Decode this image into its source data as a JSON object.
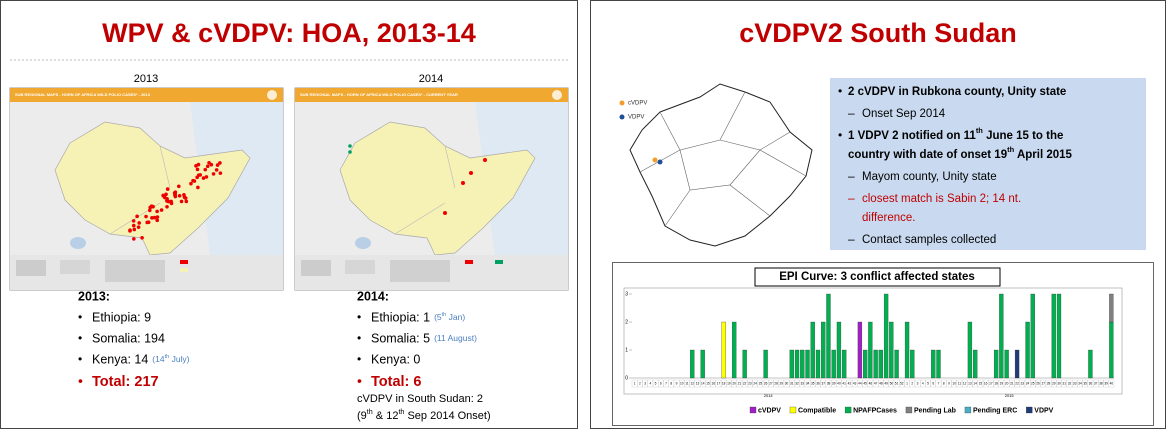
{
  "left_slide": {
    "title": "WPV & cVDPV: HOA, 2013-14",
    "maps": [
      {
        "year": "2013",
        "header": "SUB REGIONAL MAPS - HORN OF AFRICA WILD POLIO CASES* - 2013"
      },
      {
        "year": "2014",
        "header": "SUB REGIONAL MAPS - HORN OF AFRICA WILD POLIO CASES* - CURRENT YEAR"
      }
    ],
    "lists": [
      {
        "heading": "2013:",
        "items": [
          {
            "text": "Ethiopia: 9"
          },
          {
            "text": "Somalia: 194"
          },
          {
            "text": "Kenya: 14",
            "note": [
              "(14",
              "th",
              " July)"
            ]
          }
        ],
        "total": "Total: 217"
      },
      {
        "heading": "2014:",
        "items": [
          {
            "text": "Ethiopia: 1",
            "note": [
              "(5",
              "th",
              " Jan)"
            ]
          },
          {
            "text": "Somalia: 5",
            "note": [
              "(11 August)"
            ]
          },
          {
            "text": "Kenya: 0"
          }
        ],
        "total": "Total: 6",
        "footnote": [
          [
            "cVDPV in South Sudan: 2"
          ],
          [
            "(9",
            "th",
            " & 12",
            "th",
            " Sep 2014 Onset)"
          ]
        ]
      }
    ]
  },
  "right_slide": {
    "title": "cVDPV2 South Sudan",
    "map_legend": [
      "cVDPV",
      "VDPV"
    ],
    "bullets": [
      {
        "level": 1,
        "lines": [
          [
            "2 cVDPV in Rubkona county, Unity state"
          ]
        ]
      },
      {
        "level": 2,
        "lines": [
          [
            "Onset Sep 2014"
          ]
        ]
      },
      {
        "level": 1,
        "lines": [
          [
            "1 VDPV 2 notified on 11",
            "th",
            " June 15 to the"
          ],
          [
            "country with date of onset 19",
            "th",
            " April 2015"
          ]
        ]
      },
      {
        "level": 2,
        "lines": [
          [
            "Mayom county, Unity state"
          ]
        ]
      },
      {
        "level": 2,
        "color": "#c00000",
        "lines": [
          [
            "closest match is Sabin 2; 14 nt."
          ],
          [
            "difference."
          ]
        ]
      },
      {
        "level": 2,
        "lines": [
          [
            "Contact samples collected"
          ]
        ]
      }
    ],
    "epi_curve": {
      "type": "bar",
      "stacked": true,
      "title": "EPI Curve: 3 conflict affected states",
      "years": [
        "2014",
        "2015"
      ],
      "categories": [
        "1",
        "2",
        "3",
        "4",
        "5",
        "6",
        "7",
        "8",
        "9",
        "10",
        "11",
        "12",
        "13",
        "14",
        "15",
        "16",
        "17",
        "18",
        "19",
        "20",
        "21",
        "22",
        "23",
        "24",
        "25",
        "26",
        "27",
        "28",
        "29",
        "30",
        "31",
        "32",
        "33",
        "34",
        "35",
        "36",
        "37",
        "38",
        "39",
        "40",
        "41",
        "42",
        "43",
        "44",
        "45",
        "46",
        "47",
        "48",
        "49",
        "50",
        "51",
        "52",
        "1",
        "2",
        "3",
        "4",
        "5",
        "6",
        "7",
        "8",
        "9",
        "10",
        "11",
        "12",
        "13",
        "14",
        "15",
        "16",
        "17",
        "18",
        "19",
        "20",
        "21",
        "22",
        "23",
        "24",
        "25",
        "26",
        "27",
        "28",
        "29",
        "30",
        "31",
        "32",
        "33",
        "34",
        "35",
        "36",
        "37",
        "38",
        "39",
        "40"
      ],
      "ylim": [
        0,
        3
      ],
      "yticks": [
        0,
        1,
        2,
        3
      ],
      "series": [
        {
          "name": "cVDPV",
          "color": "#a020c8",
          "values": [
            0,
            0,
            0,
            0,
            0,
            0,
            0,
            0,
            0,
            0,
            0,
            0,
            0,
            0,
            0,
            0,
            0,
            0,
            0,
            0,
            0,
            0,
            0,
            0,
            0,
            0,
            0,
            0,
            0,
            0,
            0,
            0,
            0,
            0,
            0,
            0,
            0,
            0,
            0,
            0,
            0,
            0,
            0,
            2,
            0,
            0,
            0,
            0,
            0,
            0,
            0,
            0,
            0,
            0,
            0,
            0,
            0,
            0,
            0,
            0,
            0,
            0,
            0,
            0,
            0,
            0,
            0,
            0,
            0,
            0,
            0,
            0,
            0,
            0,
            0,
            0,
            0,
            0,
            0,
            0,
            0,
            0,
            0,
            0,
            0,
            0,
            0,
            0,
            0,
            0,
            0,
            0
          ]
        },
        {
          "name": "Compatible",
          "color": "#ffff00",
          "values": [
            0,
            0,
            0,
            0,
            0,
            0,
            0,
            0,
            0,
            0,
            0,
            0,
            0,
            0,
            0,
            0,
            0,
            2,
            0,
            0,
            0,
            0,
            0,
            0,
            0,
            0,
            0,
            0,
            0,
            0,
            0,
            0,
            0,
            0,
            0,
            0,
            0,
            0,
            0,
            0,
            0,
            0,
            0,
            0,
            0,
            0,
            0,
            0,
            0,
            0,
            0,
            0,
            0,
            0,
            0,
            0,
            0,
            0,
            0,
            0,
            0,
            0,
            0,
            0,
            0,
            0,
            0,
            0,
            0,
            0,
            0,
            0,
            0,
            0,
            0,
            0,
            0,
            0,
            0,
            0,
            0,
            0,
            0,
            0,
            0,
            0,
            0,
            0,
            0,
            0,
            0,
            0
          ]
        },
        {
          "name": "NPAFPCases",
          "color": "#00b050",
          "values": [
            0,
            0,
            0,
            0,
            0,
            0,
            0,
            0,
            0,
            0,
            0,
            1,
            0,
            1,
            0,
            0,
            0,
            0,
            0,
            2,
            0,
            1,
            0,
            0,
            0,
            1,
            0,
            0,
            0,
            0,
            1,
            1,
            1,
            1,
            2,
            1,
            2,
            3,
            1,
            2,
            1,
            0,
            0,
            0,
            1,
            2,
            1,
            1,
            3,
            2,
            1,
            0,
            2,
            1,
            0,
            0,
            0,
            1,
            1,
            0,
            0,
            0,
            0,
            0,
            2,
            1,
            0,
            0,
            0,
            1,
            3,
            1,
            0,
            0,
            0,
            2,
            3,
            0,
            0,
            0,
            3,
            3,
            0,
            0,
            0,
            0,
            0,
            1,
            0,
            0,
            0,
            2
          ]
        },
        {
          "name": "Pending Lab",
          "color": "#808080",
          "values": [
            0,
            0,
            0,
            0,
            0,
            0,
            0,
            0,
            0,
            0,
            0,
            0,
            0,
            0,
            0,
            0,
            0,
            0,
            0,
            0,
            0,
            0,
            0,
            0,
            0,
            0,
            0,
            0,
            0,
            0,
            0,
            0,
            0,
            0,
            0,
            0,
            0,
            0,
            0,
            0,
            0,
            0,
            0,
            0,
            0,
            0,
            0,
            0,
            0,
            0,
            0,
            0,
            0,
            0,
            0,
            0,
            0,
            0,
            0,
            0,
            0,
            0,
            0,
            0,
            0,
            0,
            0,
            0,
            0,
            0,
            0,
            0,
            0,
            0,
            0,
            0,
            0,
            0,
            0,
            0,
            0,
            0,
            0,
            0,
            0,
            0,
            0,
            0,
            0,
            0,
            0,
            1
          ]
        },
        {
          "name": "Pending ERC",
          "color": "#4bacc6",
          "values": [
            0,
            0,
            0,
            0,
            0,
            0,
            0,
            0,
            0,
            0,
            0,
            0,
            0,
            0,
            0,
            0,
            0,
            0,
            0,
            0,
            0,
            0,
            0,
            0,
            0,
            0,
            0,
            0,
            0,
            0,
            0,
            0,
            0,
            0,
            0,
            0,
            0,
            0,
            0,
            0,
            0,
            0,
            0,
            0,
            0,
            0,
            0,
            0,
            0,
            0,
            0,
            0,
            0,
            0,
            0,
            0,
            0,
            0,
            0,
            0,
            0,
            0,
            0,
            0,
            0,
            0,
            0,
            0,
            0,
            0,
            0,
            0,
            0,
            0,
            0,
            0,
            0,
            0,
            0,
            0,
            0,
            0,
            0,
            0,
            0,
            0,
            0,
            0,
            0,
            0,
            0,
            0
          ]
        },
        {
          "name": "VDPV",
          "color": "#1f3c78",
          "values": [
            0,
            0,
            0,
            0,
            0,
            0,
            0,
            0,
            0,
            0,
            0,
            0,
            0,
            0,
            0,
            0,
            0,
            0,
            0,
            0,
            0,
            0,
            0,
            0,
            0,
            0,
            0,
            0,
            0,
            0,
            0,
            0,
            0,
            0,
            0,
            0,
            0,
            0,
            0,
            0,
            0,
            0,
            0,
            0,
            0,
            0,
            0,
            0,
            0,
            0,
            0,
            0,
            0,
            0,
            0,
            0,
            0,
            0,
            0,
            0,
            0,
            0,
            0,
            0,
            0,
            0,
            0,
            0,
            0,
            0,
            0,
            0,
            0,
            1,
            0,
            0,
            0,
            0,
            0,
            0,
            0,
            0,
            0,
            0,
            0,
            0,
            0,
            0,
            0,
            0,
            0,
            0
          ]
        }
      ]
    }
  }
}
